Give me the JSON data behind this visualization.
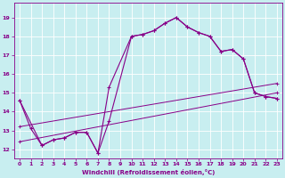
{
  "title": "",
  "xlabel": "Windchill (Refroidissement éolien,°C)",
  "bg_color": "#c8eef0",
  "line_color": "#880088",
  "grid_color": "#aadddd",
  "xlim": [
    -0.5,
    23.5
  ],
  "ylim": [
    11.5,
    19.8
  ],
  "xticks": [
    0,
    1,
    2,
    3,
    4,
    5,
    6,
    7,
    8,
    9,
    10,
    11,
    12,
    13,
    14,
    15,
    16,
    17,
    18,
    19,
    20,
    21,
    22,
    23
  ],
  "yticks": [
    12,
    13,
    14,
    15,
    16,
    17,
    18,
    19
  ],
  "curve1_x": [
    0,
    1,
    2,
    3,
    4,
    5,
    6,
    7,
    8,
    10,
    11,
    12,
    13,
    14,
    15,
    16,
    17,
    18,
    19,
    20,
    21,
    22,
    23
  ],
  "curve1_y": [
    14.6,
    13.1,
    12.2,
    12.5,
    12.6,
    12.9,
    12.9,
    11.8,
    15.3,
    18.0,
    18.1,
    18.3,
    18.7,
    19.0,
    18.5,
    18.2,
    18.0,
    17.2,
    17.3,
    16.8,
    15.0,
    14.8,
    14.7
  ],
  "curve2_x": [
    0,
    2,
    3,
    4,
    5,
    6,
    7,
    8,
    10,
    11,
    12,
    13,
    14,
    15,
    16,
    17,
    18,
    19,
    20,
    21,
    22,
    23
  ],
  "curve2_y": [
    14.6,
    12.2,
    12.5,
    12.6,
    12.9,
    12.9,
    11.8,
    13.5,
    18.0,
    18.1,
    18.3,
    18.7,
    19.0,
    18.5,
    18.2,
    18.0,
    17.2,
    17.3,
    16.8,
    15.0,
    14.8,
    14.7
  ],
  "trend1_x": [
    0,
    23
  ],
  "trend1_y": [
    12.4,
    15.0
  ],
  "trend2_x": [
    0,
    23
  ],
  "trend2_y": [
    13.2,
    15.5
  ]
}
